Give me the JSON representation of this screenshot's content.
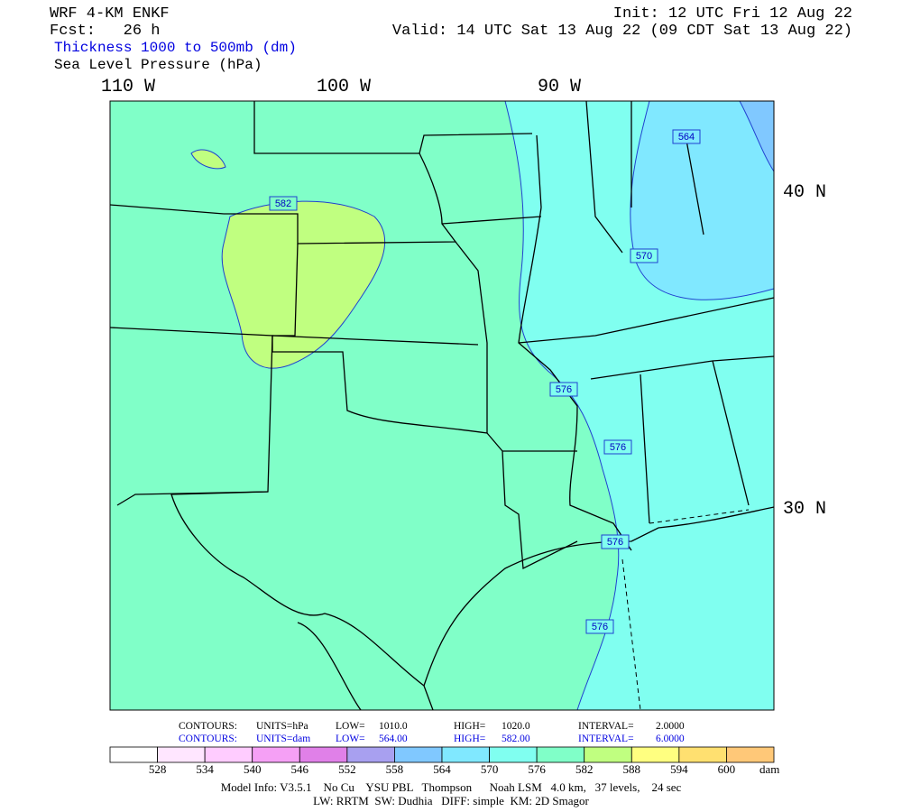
{
  "header": {
    "model": "WRF 4-KM ENKF",
    "forecast": "Fcst:   26 h",
    "init": "Init: 12 UTC Fri 12 Aug 22",
    "valid": "Valid: 14 UTC Sat 13 Aug 22 (09 CDT Sat 13 Aug 22)",
    "field_1": "Thickness 1000 to 500mb (dm)",
    "field_2": "Sea Level Pressure (hPa)"
  },
  "map": {
    "longitude_labels": [
      "110 W",
      "100 W",
      "90 W"
    ],
    "latitude_labels": [
      "40 N",
      "30 N"
    ],
    "contour_labels": [
      "582",
      "564",
      "570",
      "576",
      "576",
      "576",
      "576"
    ]
  },
  "footer": {
    "contours_slp": {
      "label": "CONTOURS:",
      "units": "UNITS=hPa",
      "low": "LOW=",
      "low_value": "1010.0",
      "high": "HIGH=",
      "high_value": "1020.0",
      "interval": "INTERVAL=",
      "interval_value": "2.0000"
    },
    "contours_thickness": {
      "label": "CONTOURS:",
      "units": "UNITS=dam",
      "low": "LOW=",
      "low_value": "564.00",
      "high": "HIGH=",
      "high_value": "582.00",
      "interval": "INTERVAL=",
      "interval_value": "6.0000"
    },
    "colorbar": {
      "labels": [
        528,
        534,
        540,
        546,
        552,
        558,
        564,
        570,
        576,
        582,
        588,
        594,
        600
      ],
      "unit": "dam",
      "colors": [
        "#ffffff",
        "#ffe6ff",
        "#ffccff",
        "#f5a0f5",
        "#e080e8",
        "#a8a0f0",
        "#80c8ff",
        "#80e8ff",
        "#80fff0",
        "#80ffc8",
        "#c0ff80",
        "#ffff80",
        "#ffe070",
        "#ffc878"
      ]
    },
    "model_info": "Model Info: V3.5.1    No Cu    YSU PBL   Thompson      Noah LSM   4.0 km,   37 levels,    24 sec",
    "physics": "LW: RRTM  SW: Dudhia   DIFF: simple  KM: 2D Smagor"
  }
}
